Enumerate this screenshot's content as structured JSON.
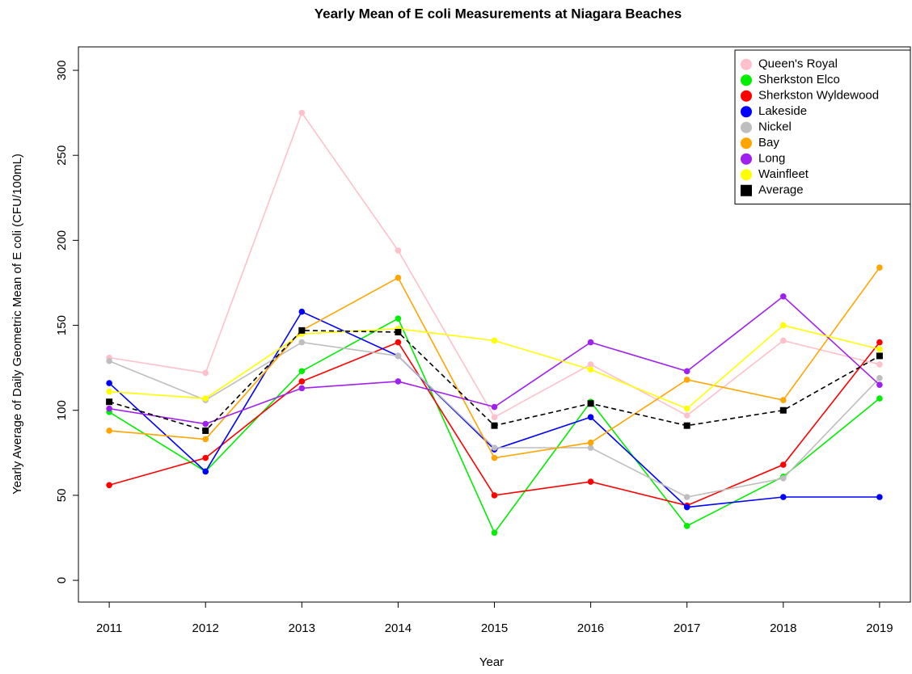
{
  "chart_data": {
    "type": "line",
    "title": "Yearly Mean of E coli Measurements at Niagara Beaches",
    "x_label": "Year",
    "y_label": "Yearly Average of Daily Geometric Mean of E coli (CFU/100mL)",
    "categories": [
      "2011",
      "2012",
      "2013",
      "2014",
      "2015",
      "2016",
      "2017",
      "2018",
      "2019"
    ],
    "ylim": [
      -12.8,
      313.8
    ],
    "yticks": [
      0,
      50,
      100,
      150,
      200,
      250,
      300
    ],
    "legend": "top-right",
    "series": [
      {
        "name": "Queen's Royal",
        "color": "#ffc0cb",
        "marker": "circle",
        "line_style": "solid",
        "values": [
          131,
          122,
          275,
          194,
          96,
          127,
          97,
          141,
          127
        ]
      },
      {
        "name": "Sherkston Elco",
        "color": "#00ee00",
        "marker": "circle",
        "line_style": "solid",
        "values": [
          99,
          64,
          123,
          154,
          28,
          105,
          32,
          61,
          107
        ]
      },
      {
        "name": "Sherkston Wyldewood",
        "color": "#ff0000",
        "marker": "circle",
        "line_style": "solid",
        "values": [
          56,
          72,
          117,
          140,
          50,
          58,
          44,
          68,
          140
        ]
      },
      {
        "name": "Lakeside",
        "color": "#0000ff",
        "marker": "circle",
        "line_style": "solid",
        "values": [
          116,
          64,
          158,
          132,
          77,
          96,
          43,
          49,
          49
        ]
      },
      {
        "name": "Nickel",
        "color": "#bebebe",
        "marker": "circle",
        "line_style": "solid",
        "values": [
          129,
          106,
          140,
          132,
          78,
          78,
          49,
          60,
          119
        ]
      },
      {
        "name": "Bay",
        "color": "#ffa500",
        "marker": "circle",
        "line_style": "solid",
        "values": [
          88,
          83,
          147,
          178,
          72,
          81,
          118,
          106,
          184
        ]
      },
      {
        "name": "Long",
        "color": "#a020f0",
        "marker": "circle",
        "line_style": "solid",
        "values": [
          101,
          92,
          113,
          117,
          102,
          140,
          123,
          167,
          115
        ]
      },
      {
        "name": "Wainfleet",
        "color": "#ffff00",
        "marker": "circle",
        "line_style": "solid",
        "values": [
          111,
          107,
          145,
          148,
          141,
          124,
          101,
          150,
          136
        ]
      },
      {
        "name": "Average",
        "color": "#000000",
        "marker": "square",
        "line_style": "dashed",
        "values": [
          105,
          88,
          147,
          146,
          91,
          104,
          91,
          100,
          132
        ]
      }
    ]
  }
}
